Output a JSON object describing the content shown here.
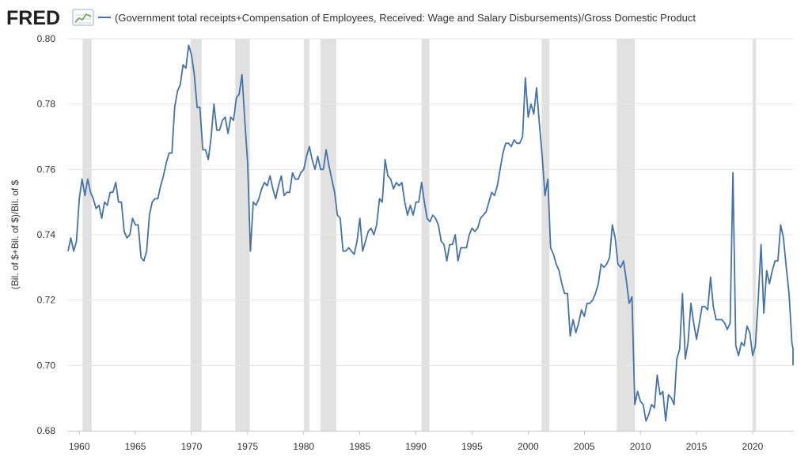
{
  "header": {
    "logo": "FRED",
    "logo_icon": "line-chart-icon"
  },
  "colors": {
    "line": "#4572a7",
    "recession": "#e1e1e1",
    "grid": "#e6e6e6",
    "text": "#333333"
  },
  "chart_data": {
    "type": "line",
    "title": "",
    "xlabel": "",
    "ylabel": "(Bil. of $+Bil. of $)/Bil. of $",
    "ylim": [
      0.68,
      0.8
    ],
    "xlim": [
      1959.0,
      2023.6
    ],
    "grid": true,
    "legend_position": "top",
    "yticks": [
      "0.68",
      "0.70",
      "0.72",
      "0.74",
      "0.76",
      "0.78",
      "0.80"
    ],
    "xticks": [
      "1960",
      "1965",
      "1970",
      "1975",
      "1980",
      "1985",
      "1990",
      "1995",
      "2000",
      "2005",
      "2010",
      "2015",
      "2020"
    ],
    "recessions": [
      [
        1960.3,
        1961.1
      ],
      [
        1969.9,
        1970.9
      ],
      [
        1973.9,
        1975.2
      ],
      [
        1980.0,
        1980.5
      ],
      [
        1981.5,
        1982.9
      ],
      [
        1990.5,
        1991.2
      ],
      [
        2001.2,
        2001.9
      ],
      [
        2007.9,
        2009.5
      ],
      [
        2020.0,
        2020.3
      ]
    ],
    "series": [
      {
        "name": "(Government total receipts+Compensation of Employees, Received: Wage and Salary Disbursements)/Gross Domestic Product",
        "color": "#4572a7",
        "points": [
          [
            1959.0,
            0.735
          ],
          [
            1959.25,
            0.739
          ],
          [
            1959.5,
            0.735
          ],
          [
            1959.75,
            0.738
          ],
          [
            1960.0,
            0.751
          ],
          [
            1960.25,
            0.757
          ],
          [
            1960.5,
            0.752
          ],
          [
            1960.75,
            0.757
          ],
          [
            1961.0,
            0.753
          ],
          [
            1961.25,
            0.751
          ],
          [
            1961.5,
            0.748
          ],
          [
            1961.75,
            0.749
          ],
          [
            1962.0,
            0.745
          ],
          [
            1962.25,
            0.75
          ],
          [
            1962.5,
            0.749
          ],
          [
            1962.75,
            0.753
          ],
          [
            1963.0,
            0.753
          ],
          [
            1963.25,
            0.756
          ],
          [
            1963.5,
            0.75
          ],
          [
            1963.75,
            0.75
          ],
          [
            1964.0,
            0.741
          ],
          [
            1964.25,
            0.739
          ],
          [
            1964.5,
            0.74
          ],
          [
            1964.75,
            0.745
          ],
          [
            1965.0,
            0.743
          ],
          [
            1965.25,
            0.743
          ],
          [
            1965.5,
            0.733
          ],
          [
            1965.75,
            0.732
          ],
          [
            1966.0,
            0.735
          ],
          [
            1966.25,
            0.746
          ],
          [
            1966.5,
            0.75
          ],
          [
            1966.75,
            0.751
          ],
          [
            1967.0,
            0.751
          ],
          [
            1967.25,
            0.755
          ],
          [
            1967.5,
            0.758
          ],
          [
            1967.75,
            0.762
          ],
          [
            1968.0,
            0.765
          ],
          [
            1968.25,
            0.765
          ],
          [
            1968.5,
            0.779
          ],
          [
            1968.75,
            0.784
          ],
          [
            1969.0,
            0.786
          ],
          [
            1969.25,
            0.792
          ],
          [
            1969.5,
            0.791
          ],
          [
            1969.75,
            0.798
          ],
          [
            1970.0,
            0.795
          ],
          [
            1970.25,
            0.789
          ],
          [
            1970.5,
            0.779
          ],
          [
            1970.75,
            0.779
          ],
          [
            1971.0,
            0.766
          ],
          [
            1971.25,
            0.766
          ],
          [
            1971.5,
            0.763
          ],
          [
            1971.75,
            0.77
          ],
          [
            1972.0,
            0.78
          ],
          [
            1972.25,
            0.772
          ],
          [
            1972.5,
            0.772
          ],
          [
            1972.75,
            0.775
          ],
          [
            1973.0,
            0.776
          ],
          [
            1973.25,
            0.771
          ],
          [
            1973.5,
            0.776
          ],
          [
            1973.75,
            0.775
          ],
          [
            1974.0,
            0.782
          ],
          [
            1974.25,
            0.783
          ],
          [
            1974.5,
            0.789
          ],
          [
            1974.75,
            0.775
          ],
          [
            1975.0,
            0.762
          ],
          [
            1975.25,
            0.735
          ],
          [
            1975.5,
            0.75
          ],
          [
            1975.75,
            0.749
          ],
          [
            1976.0,
            0.751
          ],
          [
            1976.25,
            0.754
          ],
          [
            1976.5,
            0.756
          ],
          [
            1976.75,
            0.755
          ],
          [
            1977.0,
            0.758
          ],
          [
            1977.25,
            0.754
          ],
          [
            1977.5,
            0.751
          ],
          [
            1977.75,
            0.755
          ],
          [
            1978.0,
            0.758
          ],
          [
            1978.25,
            0.752
          ],
          [
            1978.5,
            0.753
          ],
          [
            1978.75,
            0.753
          ],
          [
            1979.0,
            0.759
          ],
          [
            1979.25,
            0.757
          ],
          [
            1979.5,
            0.757
          ],
          [
            1979.75,
            0.759
          ],
          [
            1980.0,
            0.76
          ],
          [
            1980.25,
            0.764
          ],
          [
            1980.5,
            0.767
          ],
          [
            1980.75,
            0.763
          ],
          [
            1981.0,
            0.76
          ],
          [
            1981.25,
            0.764
          ],
          [
            1981.5,
            0.76
          ],
          [
            1981.75,
            0.76
          ],
          [
            1982.0,
            0.766
          ],
          [
            1982.25,
            0.761
          ],
          [
            1982.5,
            0.757
          ],
          [
            1982.75,
            0.753
          ],
          [
            1983.0,
            0.746
          ],
          [
            1983.25,
            0.745
          ],
          [
            1983.5,
            0.735
          ],
          [
            1983.75,
            0.735
          ],
          [
            1984.0,
            0.736
          ],
          [
            1984.25,
            0.735
          ],
          [
            1984.5,
            0.734
          ],
          [
            1984.75,
            0.738
          ],
          [
            1985.0,
            0.745
          ],
          [
            1985.25,
            0.735
          ],
          [
            1985.5,
            0.738
          ],
          [
            1985.75,
            0.741
          ],
          [
            1986.0,
            0.742
          ],
          [
            1986.25,
            0.74
          ],
          [
            1986.5,
            0.743
          ],
          [
            1986.75,
            0.751
          ],
          [
            1987.0,
            0.75
          ],
          [
            1987.25,
            0.763
          ],
          [
            1987.5,
            0.758
          ],
          [
            1987.75,
            0.757
          ],
          [
            1988.0,
            0.754
          ],
          [
            1988.25,
            0.756
          ],
          [
            1988.5,
            0.755
          ],
          [
            1988.75,
            0.756
          ],
          [
            1989.0,
            0.75
          ],
          [
            1989.25,
            0.746
          ],
          [
            1989.5,
            0.749
          ],
          [
            1989.75,
            0.746
          ],
          [
            1990.0,
            0.75
          ],
          [
            1990.25,
            0.75
          ],
          [
            1990.5,
            0.756
          ],
          [
            1990.75,
            0.75
          ],
          [
            1991.0,
            0.745
          ],
          [
            1991.25,
            0.744
          ],
          [
            1991.5,
            0.746
          ],
          [
            1991.75,
            0.745
          ],
          [
            1992.0,
            0.743
          ],
          [
            1992.25,
            0.738
          ],
          [
            1992.5,
            0.737
          ],
          [
            1992.75,
            0.732
          ],
          [
            1993.0,
            0.737
          ],
          [
            1993.25,
            0.737
          ],
          [
            1993.5,
            0.74
          ],
          [
            1993.75,
            0.732
          ],
          [
            1994.0,
            0.736
          ],
          [
            1994.25,
            0.736
          ],
          [
            1994.5,
            0.736
          ],
          [
            1994.75,
            0.74
          ],
          [
            1995.0,
            0.742
          ],
          [
            1995.25,
            0.741
          ],
          [
            1995.5,
            0.742
          ],
          [
            1995.75,
            0.745
          ],
          [
            1996.0,
            0.746
          ],
          [
            1996.25,
            0.747
          ],
          [
            1996.5,
            0.75
          ],
          [
            1996.75,
            0.753
          ],
          [
            1997.0,
            0.752
          ],
          [
            1997.25,
            0.755
          ],
          [
            1997.5,
            0.76
          ],
          [
            1997.75,
            0.765
          ],
          [
            1998.0,
            0.768
          ],
          [
            1998.25,
            0.768
          ],
          [
            1998.5,
            0.767
          ],
          [
            1998.75,
            0.769
          ],
          [
            1999.0,
            0.768
          ],
          [
            1999.25,
            0.768
          ],
          [
            1999.5,
            0.77
          ],
          [
            1999.75,
            0.788
          ],
          [
            2000.0,
            0.776
          ],
          [
            2000.25,
            0.78
          ],
          [
            2000.5,
            0.777
          ],
          [
            2000.75,
            0.785
          ],
          [
            2001.0,
            0.774
          ],
          [
            2001.25,
            0.764
          ],
          [
            2001.5,
            0.752
          ],
          [
            2001.75,
            0.757
          ],
          [
            2002.0,
            0.736
          ],
          [
            2002.25,
            0.734
          ],
          [
            2002.5,
            0.731
          ],
          [
            2002.75,
            0.729
          ],
          [
            2003.0,
            0.725
          ],
          [
            2003.25,
            0.722
          ],
          [
            2003.5,
            0.722
          ],
          [
            2003.75,
            0.709
          ],
          [
            2004.0,
            0.714
          ],
          [
            2004.25,
            0.71
          ],
          [
            2004.5,
            0.713
          ],
          [
            2004.75,
            0.717
          ],
          [
            2005.0,
            0.715
          ],
          [
            2005.25,
            0.719
          ],
          [
            2005.5,
            0.719
          ],
          [
            2005.75,
            0.72
          ],
          [
            2006.0,
            0.722
          ],
          [
            2006.25,
            0.725
          ],
          [
            2006.5,
            0.731
          ],
          [
            2006.75,
            0.73
          ],
          [
            2007.0,
            0.731
          ],
          [
            2007.25,
            0.733
          ],
          [
            2007.5,
            0.743
          ],
          [
            2007.75,
            0.739
          ],
          [
            2008.0,
            0.731
          ],
          [
            2008.25,
            0.73
          ],
          [
            2008.5,
            0.732
          ],
          [
            2008.75,
            0.726
          ],
          [
            2009.0,
            0.719
          ],
          [
            2009.25,
            0.721
          ],
          [
            2009.5,
            0.688
          ],
          [
            2009.75,
            0.692
          ],
          [
            2010.0,
            0.689
          ],
          [
            2010.25,
            0.688
          ],
          [
            2010.5,
            0.683
          ],
          [
            2010.75,
            0.685
          ],
          [
            2011.0,
            0.688
          ],
          [
            2011.25,
            0.687
          ],
          [
            2011.5,
            0.697
          ],
          [
            2011.75,
            0.691
          ],
          [
            2012.0,
            0.692
          ],
          [
            2012.25,
            0.683
          ],
          [
            2012.5,
            0.691
          ],
          [
            2012.75,
            0.69
          ],
          [
            2013.0,
            0.688
          ],
          [
            2013.25,
            0.702
          ],
          [
            2013.5,
            0.705
          ],
          [
            2013.75,
            0.722
          ],
          [
            2014.0,
            0.702
          ],
          [
            2014.25,
            0.707
          ],
          [
            2014.5,
            0.719
          ],
          [
            2014.75,
            0.713
          ],
          [
            2015.0,
            0.708
          ],
          [
            2015.25,
            0.713
          ],
          [
            2015.5,
            0.718
          ],
          [
            2015.75,
            0.718
          ],
          [
            2016.0,
            0.717
          ],
          [
            2016.25,
            0.727
          ],
          [
            2016.5,
            0.718
          ],
          [
            2016.75,
            0.714
          ],
          [
            2017.0,
            0.714
          ],
          [
            2017.25,
            0.714
          ],
          [
            2017.5,
            0.713
          ],
          [
            2017.75,
            0.711
          ],
          [
            2018.0,
            0.713
          ],
          [
            2018.25,
            0.759
          ],
          [
            2018.5,
            0.706
          ],
          [
            2018.75,
            0.703
          ],
          [
            2019.0,
            0.707
          ],
          [
            2019.25,
            0.706
          ],
          [
            2019.5,
            0.712
          ],
          [
            2019.75,
            0.71
          ],
          [
            2020.0,
            0.703
          ],
          [
            2020.25,
            0.706
          ],
          [
            2020.5,
            0.72
          ],
          [
            2020.75,
            0.737
          ],
          [
            2021.0,
            0.716
          ],
          [
            2021.25,
            0.729
          ],
          [
            2021.5,
            0.725
          ],
          [
            2021.75,
            0.729
          ],
          [
            2022.0,
            0.732
          ],
          [
            2022.25,
            0.732
          ],
          [
            2022.5,
            0.743
          ],
          [
            2022.75,
            0.739
          ],
          [
            2023.0,
            0.73
          ],
          [
            2023.25,
            0.722
          ],
          [
            2023.5,
            0.707
          ],
          [
            2023.75,
            0.705
          ],
          [
            2024.0,
            0.7
          ]
        ]
      }
    ]
  }
}
